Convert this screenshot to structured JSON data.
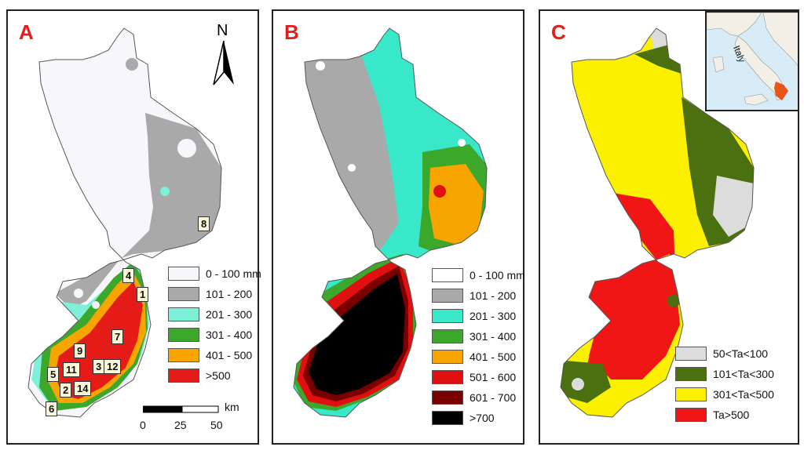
{
  "panels": [
    {
      "id": "A",
      "label": "A",
      "legend": [
        {
          "label": "0 - 100 mm",
          "color": "#f7f6fb"
        },
        {
          "label": "101 - 200",
          "color": "#a9a9a9"
        },
        {
          "label": "201 - 300",
          "color": "#7ff0d8"
        },
        {
          "label": "301 - 400",
          "color": "#3ba82b"
        },
        {
          "label": "401 - 500",
          "color": "#f8a500"
        },
        {
          "label": ">500",
          "color": "#e51b17"
        }
      ],
      "north_label": "N",
      "scale": {
        "ticks": [
          "0",
          "25",
          "50"
        ],
        "unit": "km"
      },
      "sites": [
        "1",
        "2",
        "3",
        "4",
        "5",
        "6",
        "7",
        "8",
        "9",
        "11",
        "12",
        "14"
      ]
    },
    {
      "id": "B",
      "label": "B",
      "legend": [
        {
          "label": "0 - 100 mm",
          "color": "#ffffff"
        },
        {
          "label": "101 - 200",
          "color": "#a9a9a9"
        },
        {
          "label": "201 - 300",
          "color": "#38e8c8"
        },
        {
          "label": "301 - 400",
          "color": "#3ba82b"
        },
        {
          "label": "401 - 500",
          "color": "#f8a500"
        },
        {
          "label": "501 - 600",
          "color": "#e01010"
        },
        {
          "label": "601 - 700",
          "color": "#7a0000"
        },
        {
          "label": ">700",
          "color": "#000000"
        }
      ]
    },
    {
      "id": "C",
      "label": "C",
      "legend": [
        {
          "label": "50<Ta<100",
          "color": "#dcdcdc"
        },
        {
          "label": "101<Ta<300",
          "color": "#4a7010"
        },
        {
          "label": "301<Ta<500",
          "color": "#fbf000"
        },
        {
          "label": "Ta>500",
          "color": "#f01616"
        }
      ],
      "inset_label": "Italy",
      "highlight_color": "#e8541a"
    }
  ]
}
